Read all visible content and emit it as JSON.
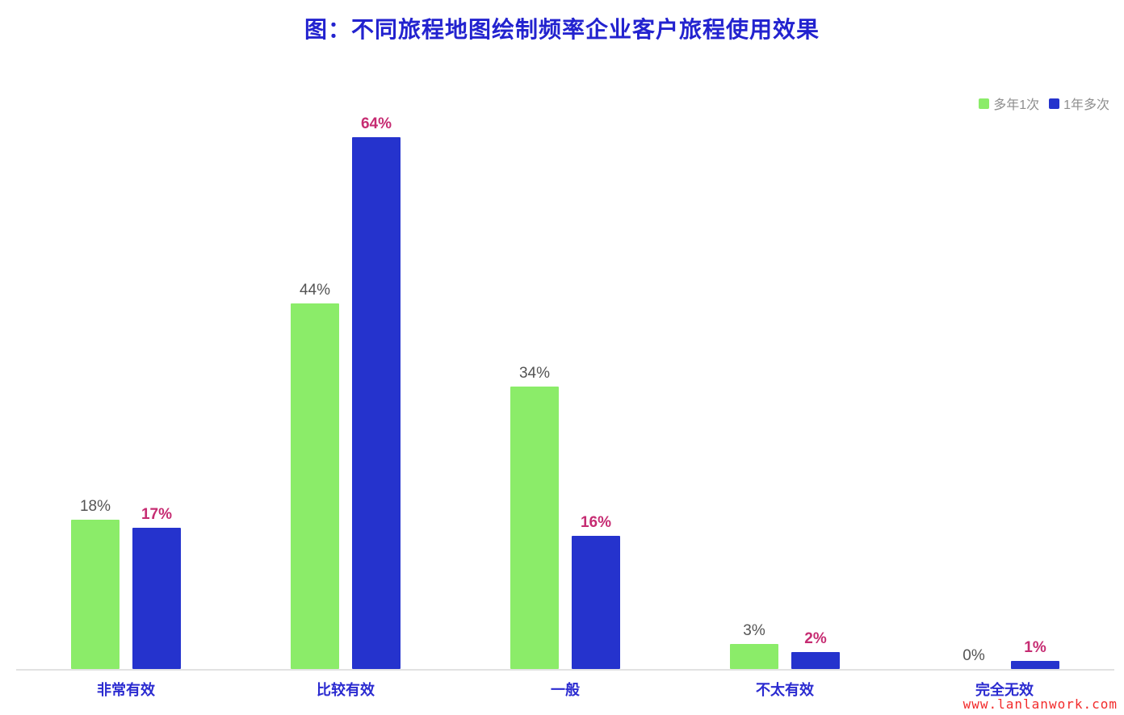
{
  "header": {
    "title": "图：不同旅程地图绘制频率企业客户旅程使用效果"
  },
  "chart_data": {
    "type": "bar",
    "title": "图：不同旅程地图绘制频率企业客户旅程使用效果",
    "categories": [
      "非常有效",
      "比较有效",
      "一般",
      "不太有效",
      "完全无效"
    ],
    "series": [
      {
        "name": "多年1次",
        "values": [
          18,
          44,
          34,
          3,
          0
        ],
        "color": "#8BEC69",
        "label_color": "#545454",
        "label_bold": false
      },
      {
        "name": "1年多次",
        "values": [
          17,
          64,
          16,
          2,
          1
        ],
        "color": "#2533CD",
        "label_color": "#C62C72",
        "label_bold": true
      }
    ],
    "value_unit": "%",
    "ylim": [
      0,
      68
    ],
    "grid": false,
    "legend_position": "top-right",
    "xlabel": "",
    "ylabel": ""
  },
  "watermark": "www.lanlanwork.com",
  "colors": {
    "title": "#2323CF",
    "category_label": "#2B2BD0",
    "legend_text": "#8E8E8E",
    "axis_line": "#E2E2E2",
    "watermark": "#F22B2B"
  }
}
